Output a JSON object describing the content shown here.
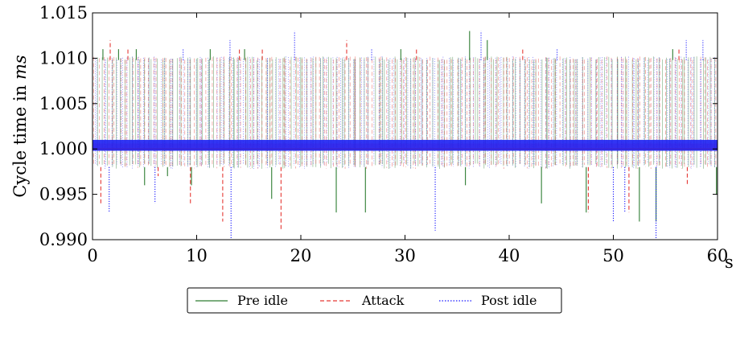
{
  "chart_data": {
    "type": "line",
    "title": "",
    "xlabel": "",
    "x_unit": "s",
    "ylabel": "Cycle time in ms",
    "ylabel_prefix": "Cycle time in",
    "ylabel_unit": "ms",
    "xlim": [
      0,
      60
    ],
    "ylim": [
      0.99,
      1.015
    ],
    "x_ticks": [
      0,
      10,
      20,
      30,
      40,
      50,
      60
    ],
    "x_tick_labels": [
      "0",
      "10",
      "20",
      "30",
      "40",
      "50",
      "60"
    ],
    "y_ticks": [
      0.99,
      0.995,
      1.0,
      1.005,
      1.01,
      1.015
    ],
    "y_tick_labels": [
      "0.990",
      "0.995",
      "1.000",
      "1.005",
      "1.010",
      "1.015"
    ],
    "legend_position": "bottom-center, below plot",
    "grid": false,
    "series": [
      {
        "name": "Pre idle",
        "color": "#2e7d32",
        "style": "solid",
        "nominal_band": [
          0.9998,
          1.001
        ],
        "spikes": [
          {
            "x": 1.0,
            "y": 1.011
          },
          {
            "x": 2.5,
            "y": 1.011
          },
          {
            "x": 4.2,
            "y": 1.011
          },
          {
            "x": 5.0,
            "y": 0.996
          },
          {
            "x": 7.2,
            "y": 0.997
          },
          {
            "x": 9.5,
            "y": 0.996
          },
          {
            "x": 11.3,
            "y": 1.011
          },
          {
            "x": 14.6,
            "y": 1.011
          },
          {
            "x": 17.2,
            "y": 0.9945
          },
          {
            "x": 23.4,
            "y": 0.993
          },
          {
            "x": 26.2,
            "y": 0.993
          },
          {
            "x": 29.6,
            "y": 1.011
          },
          {
            "x": 35.8,
            "y": 0.996
          },
          {
            "x": 36.2,
            "y": 1.013
          },
          {
            "x": 37.9,
            "y": 1.012
          },
          {
            "x": 43.1,
            "y": 0.994
          },
          {
            "x": 47.4,
            "y": 0.993
          },
          {
            "x": 52.5,
            "y": 0.992
          },
          {
            "x": 54.1,
            "y": 0.992
          },
          {
            "x": 55.7,
            "y": 1.011
          },
          {
            "x": 59.9,
            "y": 0.995
          }
        ]
      },
      {
        "name": "Attack",
        "color": "#e53935",
        "style": "dashed",
        "nominal_band": [
          0.9999,
          1.0006
        ],
        "spikes": [
          {
            "x": 0.8,
            "y": 0.994
          },
          {
            "x": 1.7,
            "y": 1.012
          },
          {
            "x": 3.4,
            "y": 1.011
          },
          {
            "x": 6.3,
            "y": 0.997
          },
          {
            "x": 9.4,
            "y": 0.994
          },
          {
            "x": 12.5,
            "y": 0.992
          },
          {
            "x": 14.1,
            "y": 1.011
          },
          {
            "x": 16.3,
            "y": 1.011
          },
          {
            "x": 18.1,
            "y": 0.991
          },
          {
            "x": 24.4,
            "y": 1.012
          },
          {
            "x": 31.1,
            "y": 1.011
          },
          {
            "x": 41.3,
            "y": 1.011
          },
          {
            "x": 47.6,
            "y": 0.993
          },
          {
            "x": 51.5,
            "y": 0.993
          },
          {
            "x": 56.3,
            "y": 1.011
          },
          {
            "x": 57.1,
            "y": 0.996
          }
        ]
      },
      {
        "name": "Post idle",
        "color": "#1a1aff",
        "style": "dotted",
        "nominal_band": [
          0.9998,
          1.001
        ],
        "spikes": [
          {
            "x": 1.6,
            "y": 0.993
          },
          {
            "x": 6.0,
            "y": 0.994
          },
          {
            "x": 8.7,
            "y": 1.011
          },
          {
            "x": 13.2,
            "y": 1.012
          },
          {
            "x": 13.3,
            "y": 0.99
          },
          {
            "x": 19.4,
            "y": 1.013
          },
          {
            "x": 26.8,
            "y": 1.011
          },
          {
            "x": 32.9,
            "y": 0.991
          },
          {
            "x": 37.3,
            "y": 1.013
          },
          {
            "x": 44.6,
            "y": 1.011
          },
          {
            "x": 50.0,
            "y": 0.992
          },
          {
            "x": 51.1,
            "y": 0.993
          },
          {
            "x": 54.1,
            "y": 0.99
          },
          {
            "x": 57.0,
            "y": 1.012
          },
          {
            "x": 58.6,
            "y": 1.012
          }
        ]
      }
    ]
  }
}
